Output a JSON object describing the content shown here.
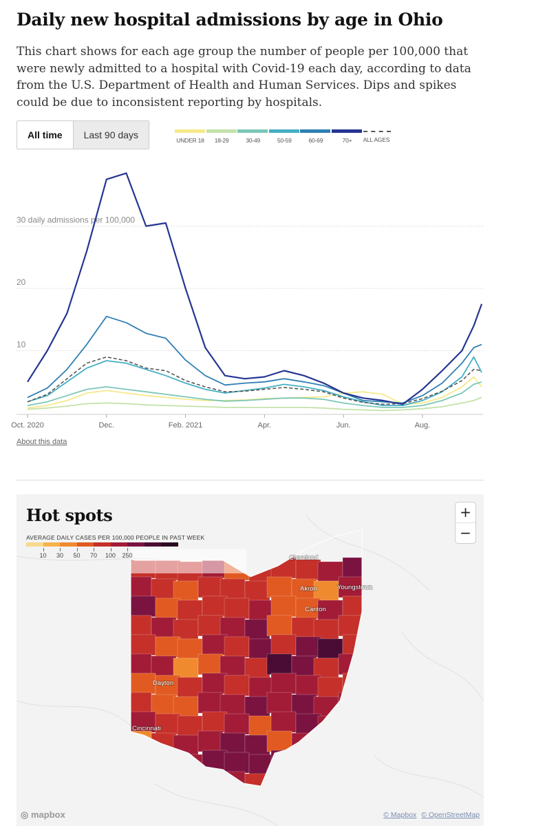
{
  "header": {
    "title": "Daily new hospital admissions by age in Ohio",
    "description": "This chart shows for each age group the number of people per 100,000 that were newly admitted to a hospital with Covid-19 each day, according to data from the U.S. Department of Health and Human Services. Dips and spikes could be due to inconsistent reporting by hospitals."
  },
  "tabs": {
    "all_time": "All time",
    "last_90": "Last 90 days"
  },
  "legend": [
    {
      "label": "UNDER 18",
      "color": "#f5e98a"
    },
    {
      "label": "18-29",
      "color": "#c4e2a8"
    },
    {
      "label": "30-49",
      "color": "#7cc6b7"
    },
    {
      "label": "50-59",
      "color": "#44aec3"
    },
    {
      "label": "60-69",
      "color": "#2f7fb3"
    },
    {
      "label": "70+",
      "color": "#253592"
    },
    {
      "label": "ALL AGES",
      "color": "#555555"
    }
  ],
  "about_link": "About this data",
  "chart_data": {
    "type": "line",
    "title": "Daily new hospital admissions by age in Ohio",
    "ylabel": "daily admissions per 100,000",
    "ylim": [
      0,
      40
    ],
    "yticks": [
      {
        "value": 10,
        "label": "10"
      },
      {
        "value": 20,
        "label": "20"
      },
      {
        "value": 30,
        "label": "30 daily admissions per 100,000"
      }
    ],
    "x_tick_labels": [
      "Oct. 2020",
      "Dec.",
      "Feb. 2021",
      "Apr.",
      "Jun.",
      "Aug."
    ],
    "x_tick_months": [
      0,
      2,
      4,
      6,
      8,
      10
    ],
    "x_range_months": [
      0,
      11.5
    ],
    "x": [
      0,
      0.5,
      1,
      1.5,
      2,
      2.5,
      3,
      3.5,
      4,
      4.5,
      5,
      5.5,
      6,
      6.5,
      7,
      7.5,
      8,
      8.5,
      9,
      9.5,
      10,
      10.5,
      11,
      11.3,
      11.5
    ],
    "series": [
      {
        "name": "UNDER 18",
        "values": [
          0.8,
          1.2,
          2.0,
          3.2,
          3.6,
          3.2,
          2.8,
          2.5,
          2.2,
          2.0,
          2.0,
          2.1,
          2.3,
          2.4,
          2.5,
          2.6,
          3.2,
          3.4,
          3.0,
          1.4,
          1.6,
          2.5,
          4.2,
          5.8,
          4.2
        ]
      },
      {
        "name": "18-29",
        "values": [
          0.6,
          0.8,
          1.1,
          1.5,
          1.6,
          1.5,
          1.3,
          1.2,
          1.1,
          1.0,
          0.9,
          0.9,
          0.9,
          0.9,
          0.9,
          0.8,
          0.6,
          0.5,
          0.4,
          0.5,
          0.7,
          1.0,
          1.6,
          2.0,
          2.5
        ]
      },
      {
        "name": "30-49",
        "values": [
          1.2,
          1.8,
          2.8,
          3.8,
          4.2,
          3.8,
          3.4,
          3.0,
          2.6,
          2.2,
          1.9,
          2.0,
          2.2,
          2.4,
          2.4,
          2.2,
          1.6,
          1.2,
          0.9,
          0.9,
          1.2,
          2.0,
          3.2,
          4.6,
          5.0
        ]
      },
      {
        "name": "50-59",
        "values": [
          1.8,
          2.8,
          5.0,
          7.2,
          8.4,
          8.0,
          7.0,
          6.0,
          4.8,
          3.8,
          3.2,
          3.6,
          4.0,
          4.6,
          4.2,
          3.6,
          2.6,
          1.8,
          1.2,
          1.2,
          2.0,
          3.4,
          5.8,
          9.0,
          6.5
        ]
      },
      {
        "name": "60-69",
        "values": [
          2.5,
          4.0,
          7.0,
          11.0,
          15.5,
          14.5,
          12.8,
          12.0,
          8.5,
          6.0,
          4.5,
          4.8,
          5.0,
          5.5,
          5.0,
          4.4,
          3.2,
          2.0,
          1.8,
          1.6,
          2.8,
          4.8,
          8.0,
          10.5,
          11.0
        ]
      },
      {
        "name": "70+",
        "values": [
          5.0,
          10.0,
          16.0,
          26.0,
          37.5,
          38.5,
          30.0,
          30.5,
          20.0,
          10.5,
          6.0,
          5.5,
          5.8,
          6.8,
          6.0,
          4.8,
          3.2,
          2.4,
          2.0,
          1.4,
          3.8,
          6.8,
          10.0,
          14.0,
          17.5
        ]
      },
      {
        "name": "ALL AGES",
        "values": [
          1.8,
          3.0,
          5.5,
          8.0,
          9.0,
          8.4,
          7.2,
          6.8,
          5.2,
          4.2,
          3.4,
          3.5,
          3.8,
          4.1,
          3.8,
          3.4,
          2.4,
          1.7,
          1.4,
          1.5,
          2.3,
          3.5,
          5.2,
          7.0,
          6.8
        ]
      }
    ]
  },
  "map": {
    "title": "Hot spots",
    "legend_title": "AVERAGE DAILY CASES PER 100,000 PEOPLE IN PAST WEEK",
    "scale_colors": [
      "#f7d98b",
      "#f6b24d",
      "#f08a2f",
      "#e15a22",
      "#c5302a",
      "#a21c37",
      "#7a1340",
      "#4a0c34",
      "#2a0a23"
    ],
    "scale_ticks": [
      "10",
      "30",
      "50",
      "70",
      "100",
      "250"
    ],
    "cities": [
      "Cleveland",
      "Akron",
      "Youngstown",
      "Canton",
      "Dayton",
      "Cincinnati"
    ],
    "zoom_in": "+",
    "zoom_out": "−",
    "mapbox_logo": "mapbox",
    "attribution_1": "© Mapbox",
    "attribution_2": "© OpenStreetMap"
  }
}
